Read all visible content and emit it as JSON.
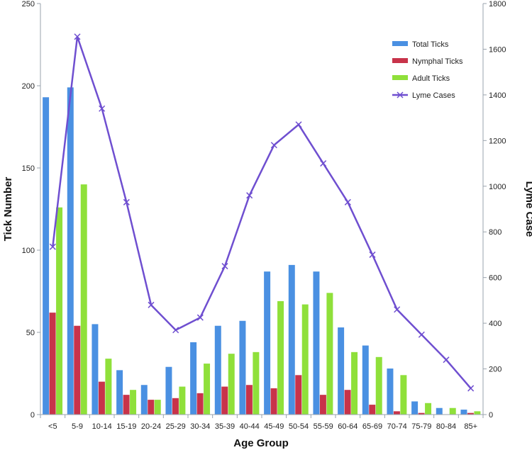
{
  "chart_data": {
    "type": "bar+line",
    "xlabel": "Age Group",
    "ylabel": "Tick Number",
    "y2label": "Lyme Case",
    "ylim": [
      0,
      250
    ],
    "y2lim": [
      0,
      1800
    ],
    "yticks": [
      "0",
      "50",
      "100",
      "150",
      "200",
      "250"
    ],
    "y2ticks": [
      "0",
      "200",
      "400",
      "600",
      "800",
      "1000",
      "1200",
      "1400",
      "1600",
      "1800"
    ],
    "categories": [
      "<5",
      "5-9",
      "10-14",
      "15-19",
      "20-24",
      "25-29",
      "30-34",
      "35-39",
      "40-44",
      "45-49",
      "50-54",
      "55-59",
      "60-64",
      "65-69",
      "70-74",
      "75-79",
      "80-84",
      "85+"
    ],
    "series": [
      {
        "name": "Total Ticks",
        "axis": "left",
        "kind": "bar",
        "color": "#4a90e2",
        "values": [
          193,
          199,
          55,
          27,
          18,
          29,
          44,
          54,
          57,
          87,
          91,
          87,
          53,
          42,
          28,
          8,
          4,
          3
        ]
      },
      {
        "name": "Nymphal Ticks",
        "axis": "left",
        "kind": "bar",
        "color": "#c8334a",
        "values": [
          62,
          54,
          20,
          12,
          9,
          10,
          13,
          17,
          18,
          16,
          24,
          12,
          15,
          6,
          2,
          1,
          0,
          1
        ]
      },
      {
        "name": "Adult Ticks",
        "axis": "left",
        "kind": "bar",
        "color": "#8fe03a",
        "values": [
          126,
          140,
          34,
          15,
          9,
          17,
          31,
          37,
          38,
          69,
          67,
          74,
          38,
          35,
          24,
          7,
          4,
          2
        ]
      },
      {
        "name": "Lyme Cases",
        "axis": "right",
        "kind": "line",
        "color": "#6f4fd0",
        "values": [
          735,
          1655,
          1340,
          930,
          480,
          370,
          425,
          650,
          960,
          1180,
          1270,
          1100,
          930,
          700,
          460,
          350,
          240,
          115
        ]
      }
    ]
  }
}
